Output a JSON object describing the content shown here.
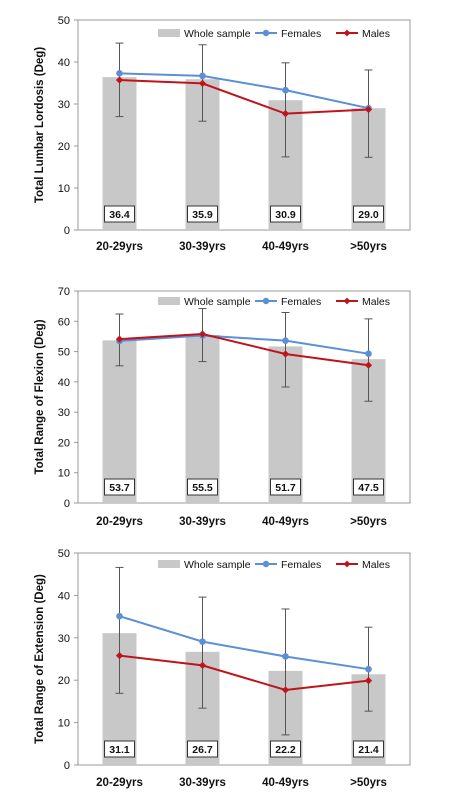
{
  "chart_data": [
    {
      "type": "bar",
      "ylabel": "Total Lumbar Lordosis (Deg)",
      "ylim": [
        0,
        50
      ],
      "yticks": [
        0,
        10,
        20,
        30,
        40,
        50
      ],
      "categories": [
        "20-29yrs",
        "30-39yrs",
        "40-49yrs",
        ">50yrs"
      ],
      "legend_position": "top-right",
      "grid": false,
      "series": [
        {
          "name": "Whole sample",
          "kind": "bar",
          "color": "#c8c8c8",
          "values": [
            36.4,
            35.9,
            30.9,
            29.0
          ]
        },
        {
          "name": "Females",
          "kind": "line",
          "color": "#5b8fd6",
          "values": [
            37.3,
            36.7,
            33.3,
            29.0
          ]
        },
        {
          "name": "Males",
          "kind": "line",
          "color": "#c0141c",
          "values": [
            35.7,
            34.9,
            27.7,
            28.7
          ]
        }
      ],
      "value_labels": [
        "36.4",
        "35.9",
        "30.9",
        "29.0"
      ],
      "error_bars": [
        [
          27.0,
          44.5
        ],
        [
          25.9,
          44.1
        ],
        [
          17.4,
          39.8
        ],
        [
          17.3,
          38.1
        ]
      ]
    },
    {
      "type": "bar",
      "ylabel": "Total Range of Flexion (Deg)",
      "ylim": [
        0,
        70
      ],
      "yticks": [
        0,
        10,
        20,
        30,
        40,
        50,
        60,
        70
      ],
      "categories": [
        "20-29yrs",
        "30-39yrs",
        "40-49yrs",
        ">50yrs"
      ],
      "legend_position": "top-right",
      "grid": false,
      "series": [
        {
          "name": "Whole sample",
          "kind": "bar",
          "color": "#c8c8c8",
          "values": [
            53.7,
            55.5,
            51.7,
            47.5
          ]
        },
        {
          "name": "Females",
          "kind": "line",
          "color": "#5b8fd6",
          "values": [
            53.5,
            55.3,
            53.6,
            49.3
          ]
        },
        {
          "name": "Males",
          "kind": "line",
          "color": "#c0141c",
          "values": [
            54.1,
            55.8,
            49.2,
            45.5
          ]
        }
      ],
      "value_labels": [
        "53.7",
        "55.5",
        "51.7",
        "47.5"
      ],
      "error_bars": [
        [
          45.3,
          62.4
        ],
        [
          46.7,
          64.2
        ],
        [
          38.3,
          62.9
        ],
        [
          33.6,
          60.8
        ]
      ]
    },
    {
      "type": "bar",
      "ylabel": "Total Range of Extension (Deg)",
      "ylim": [
        0,
        50
      ],
      "yticks": [
        0,
        10,
        20,
        30,
        40,
        50
      ],
      "categories": [
        "20-29yrs",
        "30-39yrs",
        "40-49yrs",
        ">50yrs"
      ],
      "legend_position": "top-right",
      "grid": false,
      "series": [
        {
          "name": "Whole sample",
          "kind": "bar",
          "color": "#c8c8c8",
          "values": [
            31.1,
            26.7,
            22.2,
            21.4
          ]
        },
        {
          "name": "Females",
          "kind": "line",
          "color": "#5b8fd6",
          "values": [
            35.1,
            29.1,
            25.6,
            22.6
          ]
        },
        {
          "name": "Males",
          "kind": "line",
          "color": "#c0141c",
          "values": [
            25.8,
            23.5,
            17.7,
            19.9
          ]
        }
      ],
      "value_labels": [
        "31.1",
        "26.7",
        "22.2",
        "21.4"
      ],
      "error_bars": [
        [
          16.9,
          46.6
        ],
        [
          13.4,
          39.6
        ],
        [
          7.1,
          36.8
        ],
        [
          12.7,
          32.5
        ]
      ]
    }
  ]
}
